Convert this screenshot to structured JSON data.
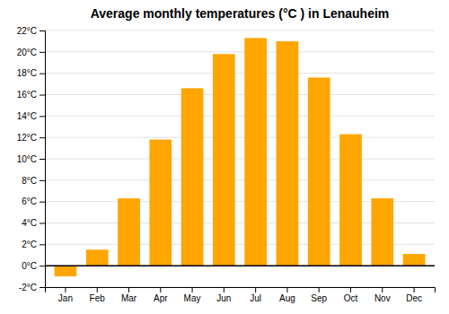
{
  "chart_data": {
    "type": "bar",
    "title": "Average monthly temperatures (°C ) in Lenauheim",
    "categories": [
      "Jan",
      "Feb",
      "Mar",
      "Apr",
      "May",
      "Jun",
      "Jul",
      "Aug",
      "Sep",
      "Oct",
      "Nov",
      "Dec"
    ],
    "values": [
      -1.0,
      1.5,
      6.3,
      11.8,
      16.6,
      19.8,
      21.3,
      21.0,
      17.6,
      12.3,
      6.3,
      1.1
    ],
    "color": "#FFA500",
    "ylim": [
      -2,
      22
    ],
    "yticks": [
      {
        "value": -2,
        "label": "-2°C"
      },
      {
        "value": 0,
        "label": "0°C"
      },
      {
        "value": 2,
        "label": "2°C"
      },
      {
        "value": 4,
        "label": "4°C"
      },
      {
        "value": 6,
        "label": "6°C"
      },
      {
        "value": 8,
        "label": "8°C"
      },
      {
        "value": 10,
        "label": "10°C"
      },
      {
        "value": 12,
        "label": "12°C"
      },
      {
        "value": 14,
        "label": "14°C"
      },
      {
        "value": 16,
        "label": "16°C"
      },
      {
        "value": 18,
        "label": "18°C"
      },
      {
        "value": 20,
        "label": "20°C"
      },
      {
        "value": 22,
        "label": "22°C"
      }
    ],
    "grid": true
  }
}
